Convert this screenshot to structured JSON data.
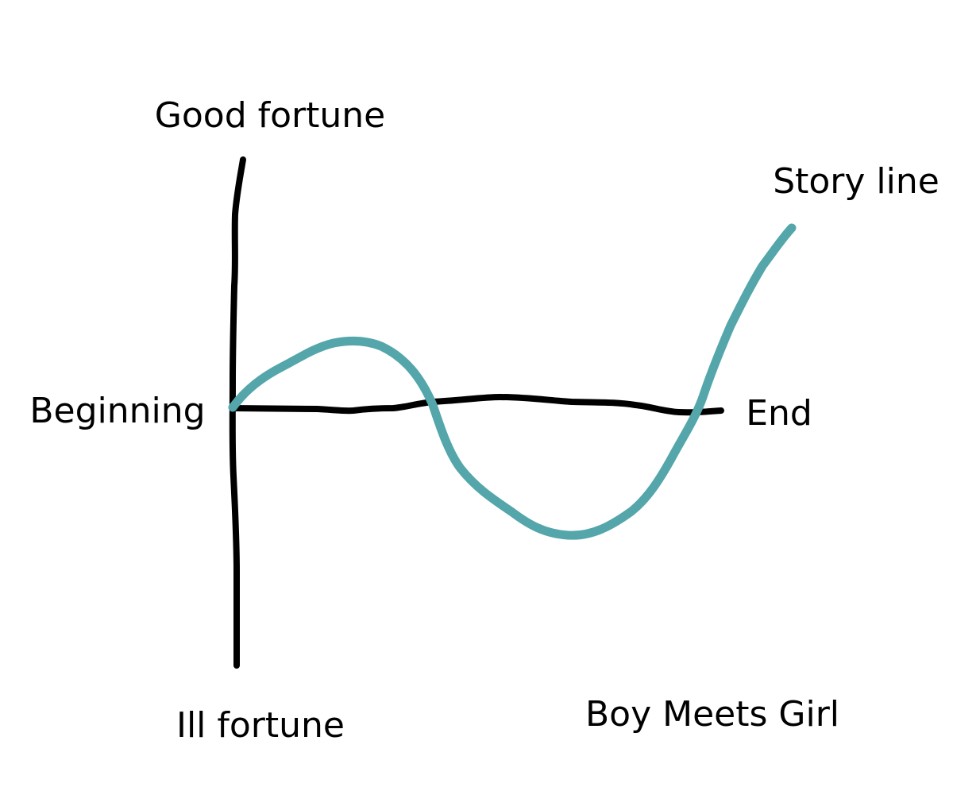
{
  "diagram": {
    "labels": {
      "top": "Good fortune",
      "bottom": "Ill fortune",
      "left": "Beginning",
      "right": "End",
      "curve": "Story line",
      "title": "Boy Meets Girl"
    }
  },
  "colors": {
    "axis": "#000000",
    "story_line": "#54a6ab",
    "background": "#ffffff"
  }
}
